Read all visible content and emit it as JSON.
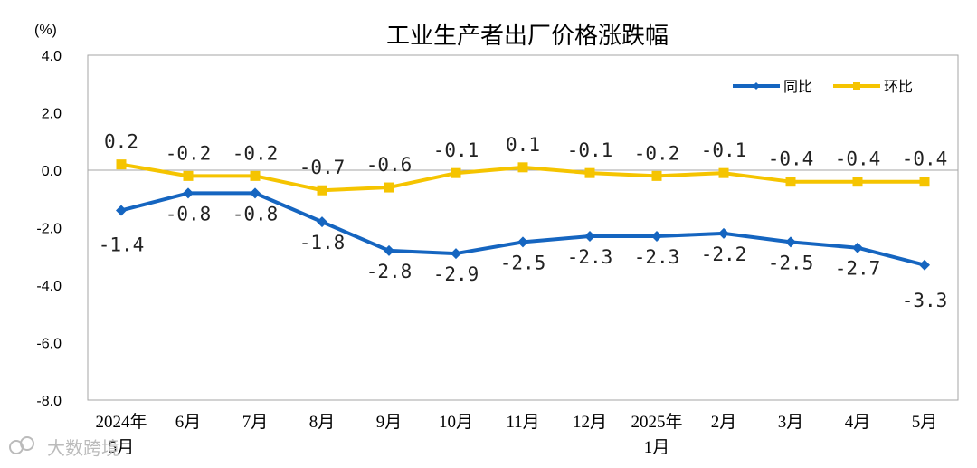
{
  "chart_data": {
    "type": "line",
    "title": "工业生产者出厂价格涨跌幅",
    "unit": "(%)",
    "ylim": [
      -8.0,
      4.0
    ],
    "yticks": [
      "4.0",
      "2.0",
      "0.0",
      "-2.0",
      "-4.0",
      "-6.0",
      "-8.0"
    ],
    "categories": [
      [
        "2024年",
        "5月"
      ],
      [
        "6月"
      ],
      [
        "7月"
      ],
      [
        "8月"
      ],
      [
        "9月"
      ],
      [
        "10月"
      ],
      [
        "11月"
      ],
      [
        "12月"
      ],
      [
        "2025年",
        "1月"
      ],
      [
        "2月"
      ],
      [
        "3月"
      ],
      [
        "4月"
      ],
      [
        "5月"
      ]
    ],
    "series": [
      {
        "name": "同比",
        "color": "#1565C0",
        "marker": "diamond",
        "values": [
          -1.4,
          -0.8,
          -0.8,
          -1.8,
          -2.8,
          -2.9,
          -2.5,
          -2.3,
          -2.3,
          -2.2,
          -2.5,
          -2.7,
          -3.3
        ],
        "labels": [
          "-1.4",
          "-0.8",
          "-0.8",
          "-1.8",
          "-2.8",
          "-2.9",
          "-2.5",
          "-2.3",
          "-2.3",
          "-2.2",
          "-2.5",
          "-2.7",
          "-3.3"
        ]
      },
      {
        "name": "环比",
        "color": "#F5C400",
        "marker": "square",
        "values": [
          0.2,
          -0.2,
          -0.2,
          -0.7,
          -0.6,
          -0.1,
          0.1,
          -0.1,
          -0.2,
          -0.1,
          -0.4,
          -0.4,
          -0.4
        ],
        "labels": [
          "0.2",
          "-0.2",
          "-0.2",
          "-0.7",
          "-0.6",
          "-0.1",
          "0.1",
          "-0.1",
          "-0.2",
          "-0.1",
          "-0.4",
          "-0.4",
          "-0.4"
        ]
      }
    ],
    "legend": "top-right"
  },
  "watermark": {
    "text": "大数跨境"
  }
}
